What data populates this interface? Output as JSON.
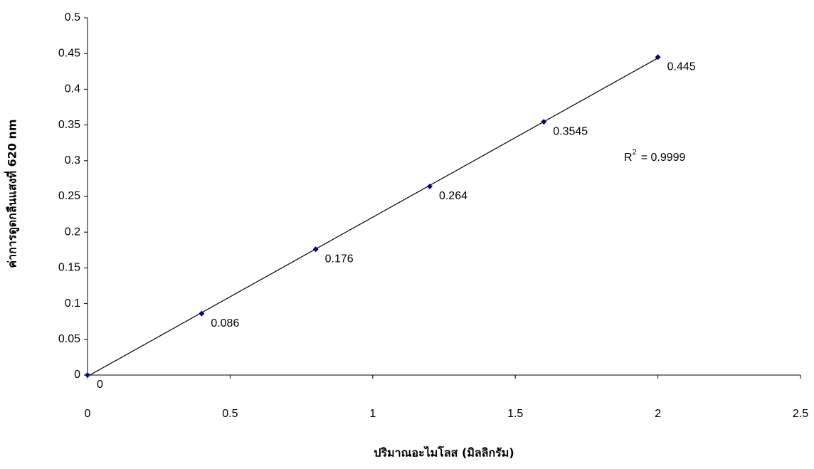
{
  "chart_data": {
    "type": "scatter",
    "x_label": "ปริมาณอะไมโลส (มิลลิกรัม)",
    "y_label": "ค่าการดูดกลืนแสงที่ 620 nm",
    "series": [
      {
        "color": "#000080",
        "x": [
          0,
          0.4,
          0.8,
          1.2,
          1.6,
          2
        ],
        "values": [
          0,
          0.086,
          0.176,
          0.264,
          0.3545,
          0.445
        ]
      }
    ],
    "trendline": "linear",
    "annotation": {
      "base": "R",
      "sup": "2",
      "text": "= 0.9999"
    },
    "xlim": [
      0,
      2.5
    ],
    "xticks": [
      0,
      0.5,
      1,
      1.5,
      2,
      2.5
    ],
    "ylim": [
      0,
      0.5
    ],
    "yticks": [
      0,
      0.05,
      0.1,
      0.15,
      0.2,
      0.25,
      0.3,
      0.35,
      0.4,
      0.45,
      0.5
    ],
    "grid": false
  }
}
